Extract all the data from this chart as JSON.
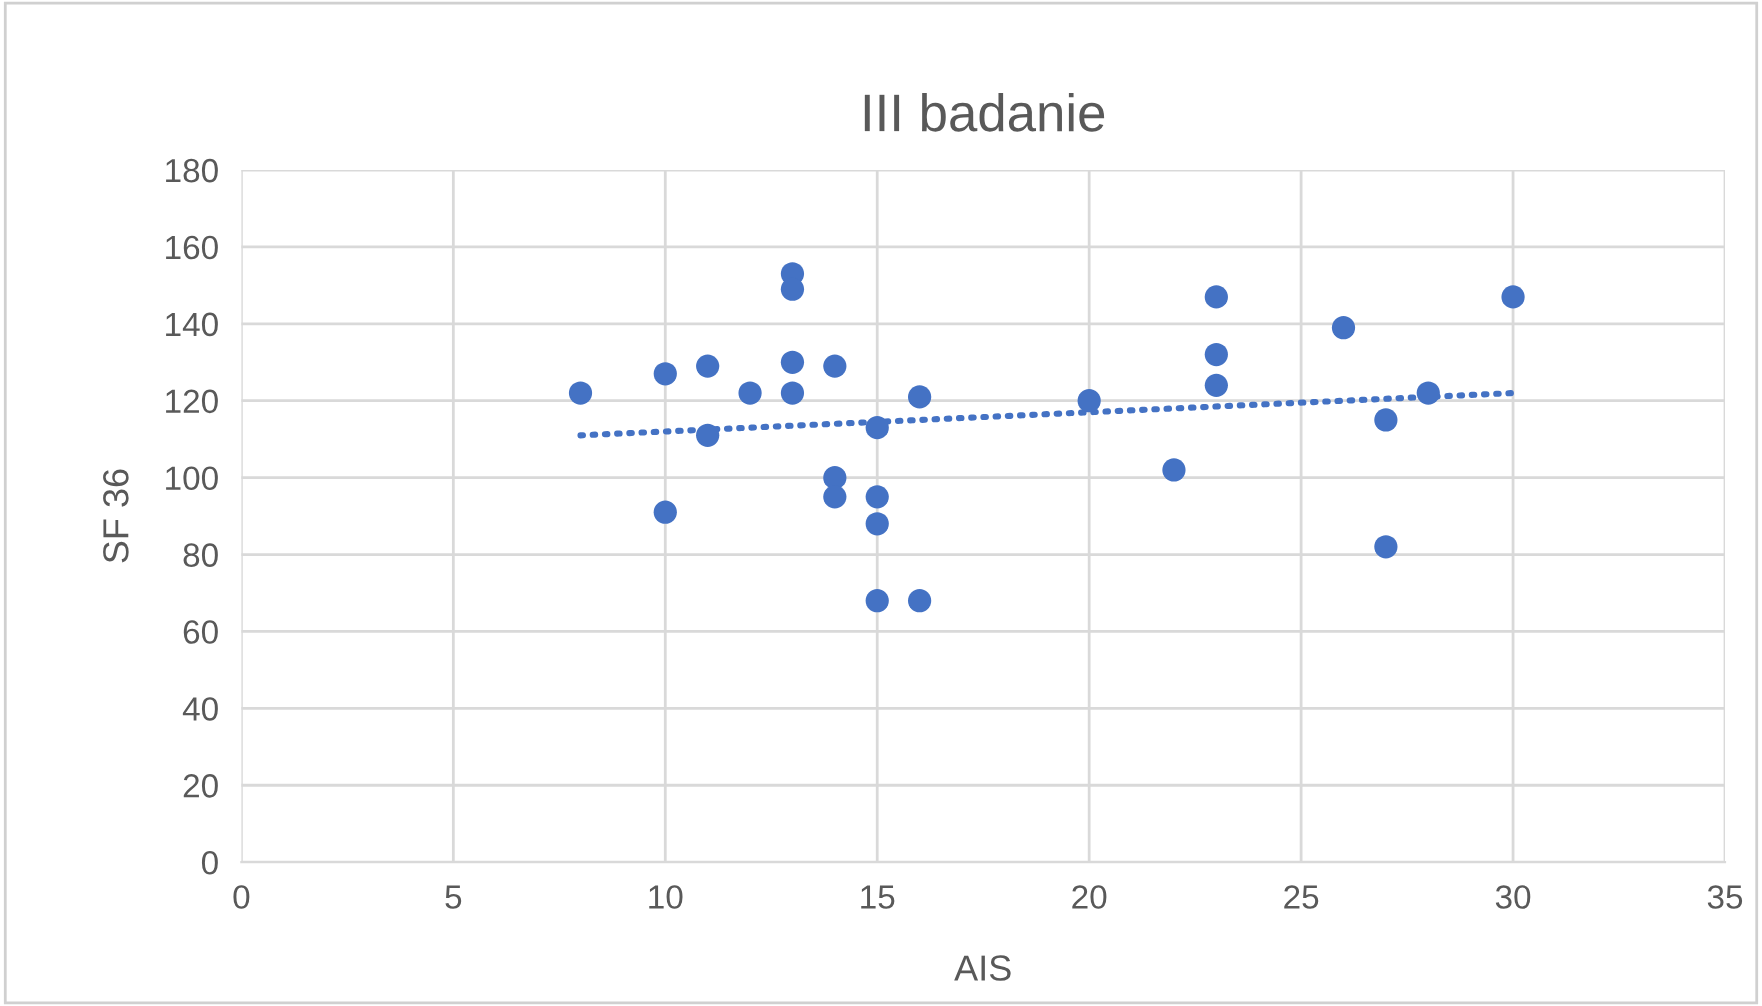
{
  "chart_data": {
    "type": "scatter",
    "title": "III badanie",
    "xlabel": "AIS",
    "ylabel": "SF 36",
    "xlim": [
      0,
      35
    ],
    "xticks": [
      0,
      5,
      10,
      15,
      20,
      25,
      30,
      35
    ],
    "ylim": [
      0,
      180
    ],
    "yticks": [
      0,
      20,
      40,
      60,
      80,
      100,
      120,
      140,
      160,
      180
    ],
    "grid": true,
    "series": [
      {
        "marker": "circle",
        "color": "#4472c4",
        "x": [
          8,
          10,
          10,
          11,
          11,
          12,
          13,
          13,
          13,
          13,
          14,
          14,
          14,
          15,
          15,
          15,
          15,
          16,
          16,
          20,
          22,
          23,
          23,
          23,
          26,
          27,
          27,
          28,
          30
        ],
        "values": [
          122,
          127,
          91,
          129,
          111,
          122,
          153,
          149,
          130,
          122,
          129,
          100,
          95,
          113,
          95,
          88,
          68,
          121,
          68,
          120,
          102,
          147,
          132,
          124,
          139,
          115,
          82,
          122,
          147
        ]
      },
      {
        "type": "line",
        "color": "#4472c4",
        "line_style": "dotted",
        "x": [
          8,
          30
        ],
        "values": [
          111,
          122
        ]
      }
    ]
  }
}
